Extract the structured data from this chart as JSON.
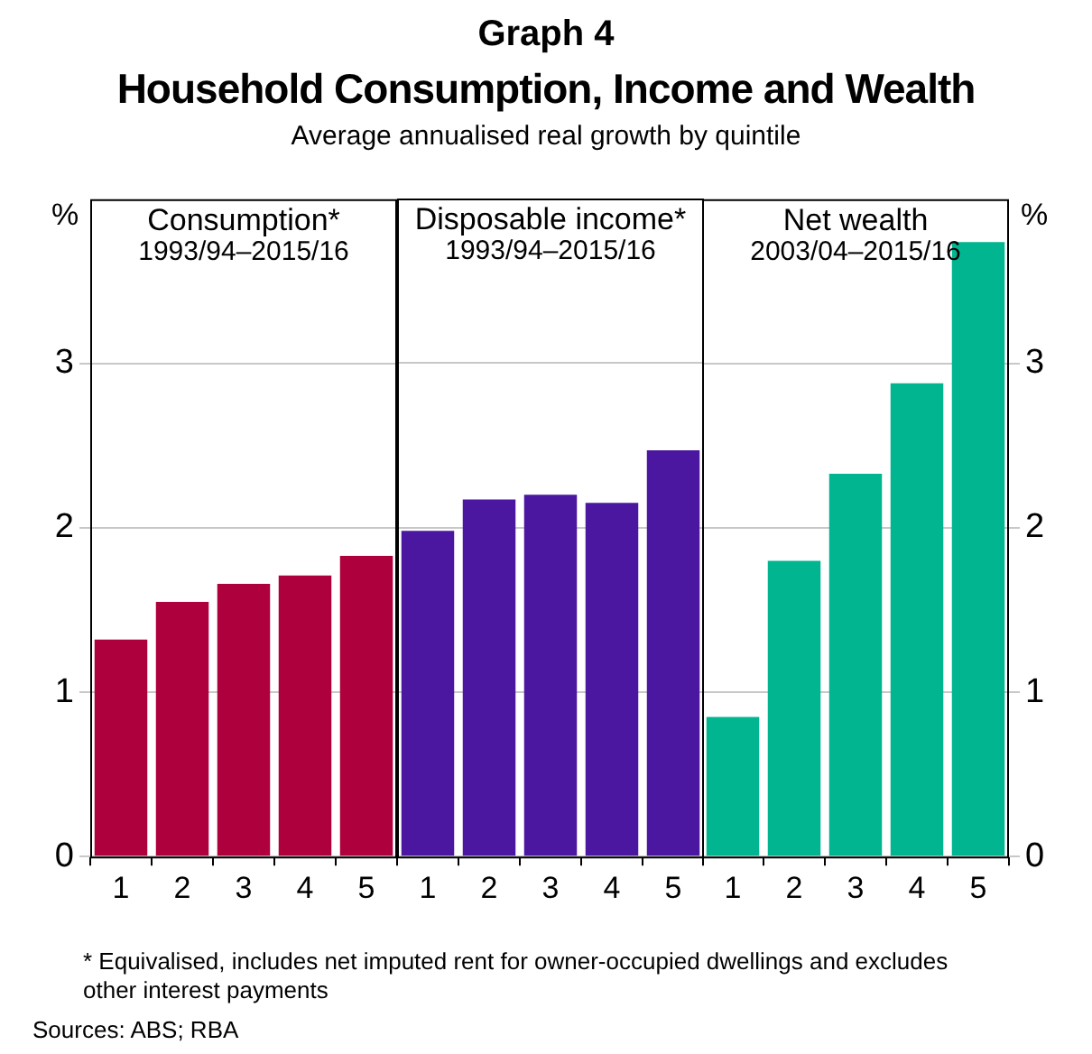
{
  "chart_data": [
    {
      "type": "bar",
      "title": "Consumption*",
      "subtitle": "1993/94–2015/16",
      "ylabel": "%",
      "categories": [
        "1",
        "2",
        "3",
        "4",
        "5"
      ],
      "values": [
        1.32,
        1.55,
        1.66,
        1.71,
        1.83
      ],
      "color": "#ad003d",
      "ylim": [
        0,
        4
      ],
      "yticks": [
        0,
        1,
        2,
        3
      ],
      "grid": "y",
      "annotations": [
        "Graph 4",
        "Household Consumption, Income and Wealth",
        "Average annualised real growth by quintile",
        "* Equivalised, includes net imputed rent for owner-occupied dwellings and excludes other interest payments",
        "Sources: ABS; RBA"
      ]
    },
    {
      "type": "bar",
      "title": "Disposable income*",
      "subtitle": "1993/94–2015/16",
      "categories": [
        "1",
        "2",
        "3",
        "4",
        "5"
      ],
      "values": [
        1.98,
        2.17,
        2.2,
        2.15,
        2.47
      ],
      "color": "#4b17a0",
      "ylim": [
        0,
        4
      ],
      "yticks": [
        0,
        1,
        2,
        3
      ],
      "grid": "y",
      "tick_labels": "x"
    },
    {
      "type": "bar",
      "title": "Net wealth",
      "subtitle": "2003/04–2015/16",
      "ylabel": "%",
      "categories": [
        "1",
        "2",
        "3",
        "4",
        "5"
      ],
      "values": [
        0.85,
        1.8,
        2.33,
        2.88,
        3.74
      ],
      "color": "#00b590",
      "ylim": [
        0,
        4
      ],
      "yticks": [
        0,
        1,
        2,
        3
      ],
      "grid": "y"
    }
  ]
}
